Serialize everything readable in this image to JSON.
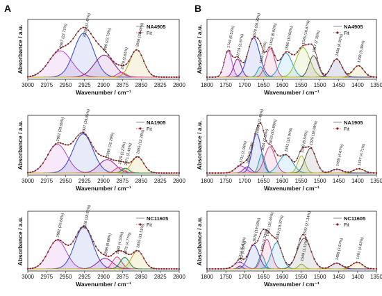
{
  "panel_labels": [
    "A",
    "B"
  ],
  "chart_data": [
    {
      "type": "line",
      "panel": "A",
      "row": 0,
      "sample": "NA4905",
      "xlabel": "Wavenumber / cm⁻¹",
      "ylabel": "Absorbance / a.u.",
      "xlim": [
        3000,
        2800
      ],
      "xticks": [
        3000,
        2975,
        2950,
        2925,
        2900,
        2875,
        2850,
        2825,
        2800
      ],
      "legend": [
        "NA4905",
        "Fit"
      ],
      "legend_position": "top-right",
      "colors": {
        "sample": "#8d8d8d",
        "fit": "#8b1a1a"
      },
      "peaks": [
        {
          "center": 2957,
          "pct": "22.71%",
          "amp": 0.55,
          "sigma": 15,
          "color": "#c04bd4"
        },
        {
          "center": 2926,
          "pct": "31.47%",
          "amp": 0.92,
          "sigma": 13,
          "color": "#3a4fd1"
        },
        {
          "center": 2899,
          "pct": "22.73%",
          "amp": 0.46,
          "sigma": 13,
          "color": "#8a2aa5"
        },
        {
          "center": 2876,
          "pct": "2.61%",
          "amp": 0.1,
          "sigma": 6,
          "color": "#d44a8a"
        },
        {
          "center": 2856,
          "pct": "20.48%",
          "amp": 0.57,
          "sigma": 9,
          "color": "#c8a21b"
        }
      ]
    },
    {
      "type": "line",
      "panel": "A",
      "row": 1,
      "sample": "NA1905",
      "xlabel": "Wavenumber / cm⁻¹",
      "ylabel": "Absorbance / a.u.",
      "xlim": [
        3000,
        2800
      ],
      "xticks": [
        3000,
        2975,
        2950,
        2925,
        2900,
        2875,
        2850,
        2825,
        2800
      ],
      "legend": [
        "NA1905",
        "Fit"
      ],
      "legend_position": "top-right",
      "colors": {
        "sample": "#8d8d8d",
        "fit": "#8b1a1a"
      },
      "peaks": [
        {
          "center": 2961,
          "pct": "29.95%",
          "amp": 0.6,
          "sigma": 13,
          "color": "#c04bd4"
        },
        {
          "center": 2927,
          "pct": "39.85%",
          "amp": 0.82,
          "sigma": 13,
          "color": "#3a4fd1"
        },
        {
          "center": 2895,
          "pct": "12.29%",
          "amp": 0.28,
          "sigma": 11,
          "color": "#8a2aa5"
        },
        {
          "center": 2879,
          "pct": "3.23%",
          "amp": 0.12,
          "sigma": 6,
          "color": "#d44a8a"
        },
        {
          "center": 2871,
          "pct": "2.45%",
          "amp": 0.1,
          "sigma": 5,
          "color": "#1f8a3a"
        },
        {
          "center": 2855,
          "pct": "12.26%",
          "amp": 0.34,
          "sigma": 8,
          "color": "#c8a21b"
        }
      ]
    },
    {
      "type": "line",
      "panel": "A",
      "row": 2,
      "sample": "NC11605",
      "xlabel": "Wavenumber / cm⁻¹",
      "ylabel": "Absorbance / a.u.",
      "xlim": [
        3000,
        2800
      ],
      "xticks": [
        3000,
        2975,
        2950,
        2925,
        2900,
        2875,
        2850,
        2825,
        2800
      ],
      "legend": [
        "NC11605",
        "Fit"
      ],
      "legend_position": "top-right",
      "colors": {
        "sample": "#8d8d8d",
        "fit": "#8b1a1a"
      },
      "peaks": [
        {
          "center": 2961,
          "pct": "20.84%",
          "amp": 0.6,
          "sigma": 12,
          "color": "#c04bd4"
        },
        {
          "center": 2926,
          "pct": "38.52%",
          "amp": 0.88,
          "sigma": 12,
          "color": "#3a4fd1"
        },
        {
          "center": 2898,
          "pct": "8.86%",
          "amp": 0.22,
          "sigma": 10,
          "color": "#8a2aa5"
        },
        {
          "center": 2882,
          "pct": "4.50%",
          "amp": 0.25,
          "sigma": 6,
          "color": "#d44a8a"
        },
        {
          "center": 2872,
          "pct": "4.77%",
          "amp": 0.24,
          "sigma": 6,
          "color": "#1f8a3a"
        },
        {
          "center": 2855,
          "pct": "11.51%",
          "amp": 0.38,
          "sigma": 8,
          "color": "#c8a21b"
        }
      ]
    },
    {
      "type": "line",
      "panel": "B",
      "row": 0,
      "sample": "NA4905",
      "xlabel": "Wavenumber / cm⁻¹",
      "ylabel": "Absorbance / a.u.",
      "xlim": [
        1800,
        1350
      ],
      "xticks": [
        1800,
        1750,
        1700,
        1650,
        1600,
        1550,
        1500,
        1450,
        1400,
        1350
      ],
      "legend": [
        "NA4905",
        "Fit"
      ],
      "legend_position": "top-right",
      "colors": {
        "sample": "#8d8d8d",
        "fit": "#8b1a1a"
      },
      "peaks": [
        {
          "center": 1744,
          "pct": "6.52%",
          "amp": 0.55,
          "sigma": 10,
          "color": "#c04bd4"
        },
        {
          "center": 1719,
          "pct": "2.67%",
          "amp": 0.38,
          "sigma": 10,
          "color": "#8a2aa5"
        },
        {
          "center": 1676,
          "pct": "26.39%",
          "amp": 0.82,
          "sigma": 16,
          "color": "#3a4fd1"
        },
        {
          "center": 1658,
          "pct": "1.13%",
          "amp": 0.22,
          "sigma": 8,
          "color": "#2aa5a0"
        },
        {
          "center": 1632,
          "pct": "6.82%",
          "amp": 0.6,
          "sigma": 12,
          "color": "#d44a8a"
        },
        {
          "center": 1590,
          "pct": "10.92%",
          "amp": 0.5,
          "sigma": 16,
          "color": "#2ba3d8"
        },
        {
          "center": 1545,
          "pct": "16.67%",
          "amp": 0.62,
          "sigma": 18,
          "color": "#9bc23a"
        },
        {
          "center": 1517,
          "pct": "7.35%",
          "amp": 0.45,
          "sigma": 12,
          "color": "#5a5a5a"
        },
        {
          "center": 1456,
          "pct": "6.83%",
          "amp": 0.38,
          "sigma": 14,
          "color": "#1c2d80"
        },
        {
          "center": 1398,
          "pct": "5.06%",
          "amp": 0.24,
          "sigma": 14,
          "color": "#c8a21b"
        }
      ]
    },
    {
      "type": "line",
      "panel": "B",
      "row": 1,
      "sample": "NA1905",
      "xlabel": "Wavenumber / cm⁻¹",
      "ylabel": "Absorbance / a.u.",
      "xlim": [
        1800,
        1350
      ],
      "xticks": [
        1800,
        1750,
        1700,
        1650,
        1600,
        1550,
        1500,
        1450,
        1400,
        1350
      ],
      "legend": [
        "NA1905",
        "Fit"
      ],
      "legend_position": "top-right",
      "colors": {
        "sample": "#8d8d8d",
        "fit": "#8b1a1a"
      },
      "peaks": [
        {
          "center": 1711,
          "pct": "3.06%",
          "amp": 0.15,
          "sigma": 14,
          "color": "#c04bd4"
        },
        {
          "center": 1693,
          "pct": "2.72%",
          "amp": 0.13,
          "sigma": 10,
          "color": "#8a2aa5"
        },
        {
          "center": 1668,
          "pct": "21.46%",
          "amp": 0.82,
          "sigma": 12,
          "color": "#3a4fd1"
        },
        {
          "center": 1654,
          "pct": "7.85%",
          "amp": 0.4,
          "sigma": 8,
          "color": "#2aa5a0"
        },
        {
          "center": 1633,
          "pct": "15.69%",
          "amp": 0.55,
          "sigma": 14,
          "color": "#d44a8a"
        },
        {
          "center": 1591,
          "pct": "15.04%",
          "amp": 0.38,
          "sigma": 18,
          "color": "#2ba3d8"
        },
        {
          "center": 1549,
          "pct": "6.54%",
          "amp": 0.36,
          "sigma": 10,
          "color": "#9bc23a"
        },
        {
          "center": 1525,
          "pct": "18.08%",
          "amp": 0.52,
          "sigma": 14,
          "color": "#5a5a5a"
        },
        {
          "center": 1455,
          "pct": "4.67%",
          "amp": 0.08,
          "sigma": 14,
          "color": "#1c2d80"
        },
        {
          "center": 1397,
          "pct": "4.71%",
          "amp": 0.09,
          "sigma": 14,
          "color": "#c8a21b"
        }
      ]
    },
    {
      "type": "line",
      "panel": "B",
      "row": 2,
      "sample": "NC11605",
      "xlabel": "Wavenumber / cm⁻¹",
      "ylabel": "Absorbance / a.u.",
      "xlim": [
        1800,
        1350
      ],
      "xticks": [
        1800,
        1750,
        1700,
        1650,
        1600,
        1550,
        1500,
        1450,
        1400,
        1350
      ],
      "legend": [
        "NC11605",
        "Fit"
      ],
      "legend_position": "top-right",
      "colors": {
        "sample": "#8d8d8d",
        "fit": "#8b1a1a"
      },
      "peaks": [
        {
          "center": 1714,
          "pct": "5.81%",
          "amp": 0.14,
          "sigma": 14,
          "color": "#c04bd4"
        },
        {
          "center": 1712,
          "pct": "0.37%",
          "amp": 0.06,
          "sigma": 6,
          "color": "#8a2aa5"
        },
        {
          "center": 1676,
          "pct": "19.53%",
          "amp": 0.5,
          "sigma": 14,
          "color": "#3a4fd1"
        },
        {
          "center": 1655,
          "pct": "4.33%",
          "amp": 0.3,
          "sigma": 8,
          "color": "#2aa5a0"
        },
        {
          "center": 1641,
          "pct": "15.45%",
          "amp": 0.62,
          "sigma": 12,
          "color": "#d44a8a"
        },
        {
          "center": 1615,
          "pct": "19.37%",
          "amp": 0.55,
          "sigma": 14,
          "color": "#2ba3d8"
        },
        {
          "center": 1549,
          "pct": "1.12%",
          "amp": 0.1,
          "sigma": 8,
          "color": "#9bc23a"
        },
        {
          "center": 1542,
          "pct": "27.14%",
          "amp": 0.64,
          "sigma": 18,
          "color": "#5a5a5a"
        },
        {
          "center": 1456,
          "pct": "3.57%",
          "amp": 0.12,
          "sigma": 14,
          "color": "#1c2d80"
        },
        {
          "center": 1401,
          "pct": "4.63%",
          "amp": 0.14,
          "sigma": 14,
          "color": "#c8a21b"
        }
      ]
    }
  ]
}
